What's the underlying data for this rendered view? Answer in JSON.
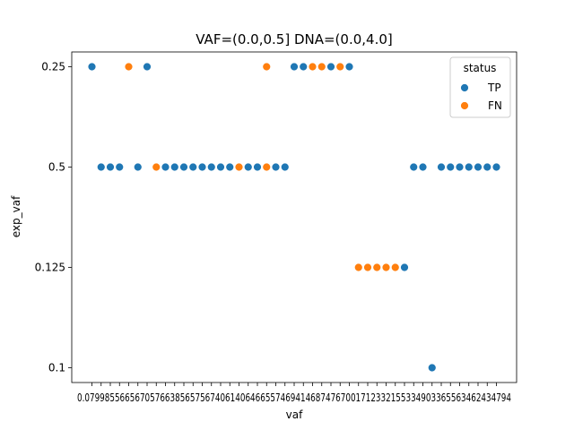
{
  "chart_data": {
    "type": "scatter",
    "title": "VAF=(0.0,0.5] DNA=(0.0,4.0]",
    "xlabel": "vaf",
    "ylabel": "exp_vaf",
    "y_categories": [
      "0.25",
      "0.5",
      "0.125",
      "0.1"
    ],
    "x_tick_text": "0.0799855665670576638565756740614064665574694146874767001712332155334903365563462434794",
    "legend": {
      "title": "status",
      "location": "top-right"
    },
    "series": [
      {
        "name": "TP",
        "color": "#1f77b4"
      },
      {
        "name": "FN",
        "color": "#ff7f0e"
      }
    ],
    "points": [
      {
        "i": 0,
        "y": "0.25",
        "status": "TP"
      },
      {
        "i": 1,
        "y": "0.5",
        "status": "TP"
      },
      {
        "i": 2,
        "y": "0.5",
        "status": "TP"
      },
      {
        "i": 3,
        "y": "0.5",
        "status": "TP"
      },
      {
        "i": 4,
        "y": "0.25",
        "status": "FN"
      },
      {
        "i": 5,
        "y": "0.5",
        "status": "TP"
      },
      {
        "i": 6,
        "y": "0.25",
        "status": "TP"
      },
      {
        "i": 7,
        "y": "0.5",
        "status": "FN"
      },
      {
        "i": 8,
        "y": "0.5",
        "status": "TP"
      },
      {
        "i": 9,
        "y": "0.5",
        "status": "TP"
      },
      {
        "i": 10,
        "y": "0.5",
        "status": "TP"
      },
      {
        "i": 11,
        "y": "0.5",
        "status": "TP"
      },
      {
        "i": 12,
        "y": "0.5",
        "status": "TP"
      },
      {
        "i": 13,
        "y": "0.5",
        "status": "TP"
      },
      {
        "i": 14,
        "y": "0.5",
        "status": "TP"
      },
      {
        "i": 15,
        "y": "0.5",
        "status": "TP"
      },
      {
        "i": 16,
        "y": "0.5",
        "status": "FN"
      },
      {
        "i": 17,
        "y": "0.5",
        "status": "TP"
      },
      {
        "i": 18,
        "y": "0.5",
        "status": "TP"
      },
      {
        "i": 19,
        "y": "0.25",
        "status": "FN"
      },
      {
        "i": 19,
        "y": "0.5",
        "status": "FN"
      },
      {
        "i": 20,
        "y": "0.5",
        "status": "TP"
      },
      {
        "i": 21,
        "y": "0.5",
        "status": "TP"
      },
      {
        "i": 22,
        "y": "0.25",
        "status": "TP"
      },
      {
        "i": 23,
        "y": "0.25",
        "status": "TP"
      },
      {
        "i": 24,
        "y": "0.25",
        "status": "FN"
      },
      {
        "i": 25,
        "y": "0.25",
        "status": "FN"
      },
      {
        "i": 26,
        "y": "0.25",
        "status": "TP"
      },
      {
        "i": 27,
        "y": "0.25",
        "status": "FN"
      },
      {
        "i": 28,
        "y": "0.25",
        "status": "TP"
      },
      {
        "i": 29,
        "y": "0.125",
        "status": "FN"
      },
      {
        "i": 30,
        "y": "0.125",
        "status": "FN"
      },
      {
        "i": 31,
        "y": "0.125",
        "status": "FN"
      },
      {
        "i": 32,
        "y": "0.125",
        "status": "FN"
      },
      {
        "i": 33,
        "y": "0.125",
        "status": "FN"
      },
      {
        "i": 34,
        "y": "0.125",
        "status": "TP"
      },
      {
        "i": 35,
        "y": "0.5",
        "status": "TP"
      },
      {
        "i": 36,
        "y": "0.5",
        "status": "TP"
      },
      {
        "i": 37,
        "y": "0.1",
        "status": "TP"
      },
      {
        "i": 38,
        "y": "0.5",
        "status": "TP"
      },
      {
        "i": 39,
        "y": "0.5",
        "status": "TP"
      },
      {
        "i": 40,
        "y": "0.5",
        "status": "TP"
      },
      {
        "i": 41,
        "y": "0.5",
        "status": "TP"
      },
      {
        "i": 42,
        "y": "0.5",
        "status": "TP"
      },
      {
        "i": 43,
        "y": "0.5",
        "status": "TP"
      },
      {
        "i": 44,
        "y": "0.5",
        "status": "TP"
      }
    ]
  }
}
